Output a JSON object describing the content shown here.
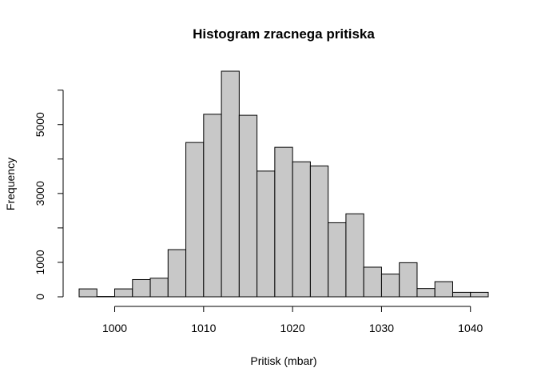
{
  "chart_data": {
    "type": "bar",
    "title": "Histogram zracnega pritiska",
    "xlabel": "Pritisk (mbar)",
    "ylabel": "Frequency",
    "bin_edges": [
      996,
      998,
      1000,
      1002,
      1004,
      1006,
      1008,
      1010,
      1012,
      1014,
      1016,
      1018,
      1020,
      1022,
      1024,
      1026,
      1028,
      1030,
      1032,
      1034,
      1036,
      1038,
      1040,
      1042
    ],
    "values": [
      230,
      10,
      230,
      500,
      540,
      1370,
      4480,
      5300,
      6550,
      5270,
      3650,
      4340,
      3920,
      3800,
      2150,
      2410,
      860,
      660,
      990,
      240,
      440,
      130,
      130
    ],
    "xlim": [
      996,
      1042
    ],
    "ylim": [
      0,
      6550
    ],
    "x_ticks": [
      1000,
      1010,
      1020,
      1030,
      1040
    ],
    "y_ticks": [
      0,
      1000,
      3000,
      5000
    ],
    "y_axis_range": [
      0,
      6000
    ],
    "bar_color": "#c8c8c8",
    "grid": false,
    "legend": "none"
  }
}
